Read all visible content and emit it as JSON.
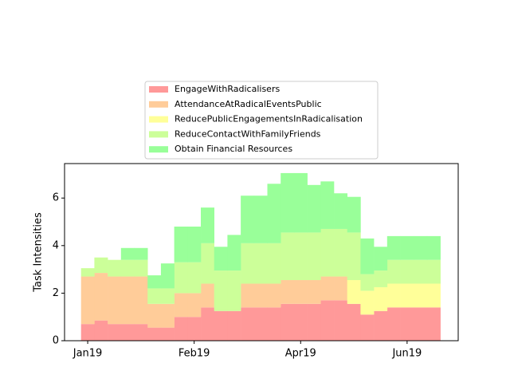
{
  "chart_data": {
    "type": "stacked_step_area",
    "y_label": "Task Intensities",
    "x": [
      0,
      1,
      2,
      3,
      4,
      5,
      6,
      7,
      8,
      9,
      10,
      11,
      12,
      13,
      14,
      15,
      16,
      17,
      18,
      19,
      20,
      21,
      22,
      23,
      24,
      25,
      26
    ],
    "xlim": [
      -1.74,
      27.84
    ],
    "xticks": [
      {
        "value": 0,
        "label": "Jan19"
      },
      {
        "value": 8,
        "label": "Feb19"
      },
      {
        "value": 16,
        "label": "Apr19"
      },
      {
        "value": 24,
        "label": "Jun19"
      }
    ],
    "ylim": [
      0,
      7.45
    ],
    "yticks": [
      0,
      2,
      4,
      6
    ],
    "series": [
      {
        "name": "EngageWithRadicalisers",
        "color": "#ff9999",
        "values": [
          0.7,
          0.85,
          0.7,
          0.7,
          0.7,
          0.55,
          0.55,
          1.0,
          1.0,
          1.4,
          1.25,
          1.25,
          1.4,
          1.4,
          1.4,
          1.55,
          1.55,
          1.55,
          1.7,
          1.7,
          1.55,
          1.1,
          1.25,
          1.4,
          1.4,
          1.4,
          1.4
        ]
      },
      {
        "name": "AttendanceAtRadicalEventsPublic",
        "color": "#ffcc99",
        "values": [
          2,
          2,
          2,
          2,
          2,
          1,
          1,
          1,
          1,
          1,
          0,
          0,
          1,
          1,
          1,
          1,
          1,
          1,
          1,
          1,
          0,
          0,
          0,
          0,
          0,
          0,
          0
        ]
      },
      {
        "name": "ReducePublicEngagementsInRadicalisation",
        "color": "#ffff99",
        "values": [
          0,
          0,
          0,
          0,
          0,
          0,
          0,
          0,
          0,
          0,
          0,
          0,
          0,
          0,
          0,
          0,
          0,
          0,
          0,
          0,
          1,
          1,
          1,
          1,
          1,
          1,
          1
        ]
      },
      {
        "name": "ReduceContactWithFamilyFriends",
        "color": "#ccff99",
        "values": [
          0.35,
          0.65,
          0.7,
          0.7,
          0.7,
          0.65,
          0.65,
          1.3,
          1.3,
          1.7,
          1.7,
          1.7,
          1.7,
          1.7,
          1.7,
          2,
          2,
          2,
          2,
          2,
          2,
          0.7,
          0.7,
          1,
          1,
          1,
          1
        ]
      },
      {
        "name": "Obtain Financial Resources",
        "color": "#99ff99",
        "values": [
          0,
          0,
          0,
          0.5,
          0.5,
          0.55,
          1.05,
          1.5,
          1.5,
          1.5,
          1.0,
          1.5,
          2,
          2,
          2.5,
          2.5,
          2.5,
          2,
          2,
          1.5,
          1.5,
          1.5,
          1,
          1,
          1,
          1,
          1
        ]
      }
    ],
    "legend": "upper center"
  }
}
